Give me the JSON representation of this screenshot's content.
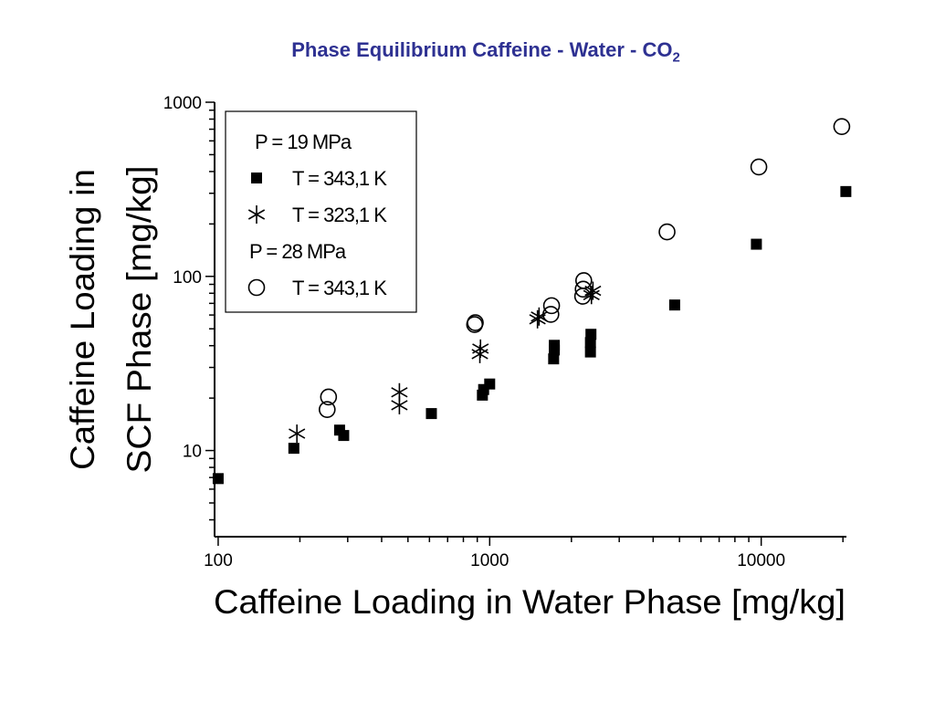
{
  "slide": {
    "title_main": "Phase Equilibrium Caffeine - Water - CO",
    "title_sub": "2"
  },
  "chart_data": {
    "type": "scatter",
    "xscale": "log",
    "yscale": "log",
    "xlim": [
      97,
      20600
    ],
    "ylim": [
      3.2,
      1000
    ],
    "xlabel": "Caffeine Loading in Water Phase [mg/kg]",
    "ylabel_lines": [
      "Caffeine Loading in",
      "SCF Phase [mg/kg]"
    ],
    "x_ticks": [
      {
        "value": 100,
        "label": "100"
      },
      {
        "value": 1000,
        "label": "1000"
      },
      {
        "value": 10000,
        "label": "10000"
      }
    ],
    "y_ticks": [
      {
        "value": 10,
        "label": "10"
      },
      {
        "value": 100,
        "label": "100"
      },
      {
        "value": 1000,
        "label": "1000"
      }
    ],
    "legend": {
      "placement": "top-left",
      "groups": [
        {
          "label": "P = 19 MPa",
          "entries": [
            {
              "marker": "filled-square",
              "label": "T = 343,1 K"
            },
            {
              "marker": "asterisk",
              "label": "T = 323,1 K"
            }
          ]
        },
        {
          "label": "P = 28 MPa",
          "entries": [
            {
              "marker": "open-circle",
              "label": "T = 343,1 K"
            }
          ]
        }
      ]
    },
    "series": [
      {
        "marker": "filled-square",
        "color": "#000000",
        "points": [
          [
            100,
            6.9
          ],
          [
            190,
            10.3
          ],
          [
            280,
            13.1
          ],
          [
            290,
            12.2
          ],
          [
            610,
            16.3
          ],
          [
            940,
            20.8
          ],
          [
            950,
            22.4
          ],
          [
            1000,
            24.1
          ],
          [
            1720,
            33.6
          ],
          [
            1730,
            37.8
          ],
          [
            1730,
            40.2
          ],
          [
            2350,
            36.8
          ],
          [
            2350,
            41.7
          ],
          [
            2360,
            46.5
          ],
          [
            4800,
            68.5
          ],
          [
            9600,
            153
          ],
          [
            20500,
            307
          ]
        ]
      },
      {
        "marker": "asterisk",
        "color": "#000000",
        "points": [
          [
            195,
            12.5
          ],
          [
            465,
            18.2
          ],
          [
            465,
            21.6
          ],
          [
            920,
            35.8
          ],
          [
            925,
            38.5
          ],
          [
            1500,
            56.7
          ],
          [
            1520,
            58.8
          ],
          [
            2370,
            78.1
          ],
          [
            2400,
            82.7
          ]
        ]
      },
      {
        "marker": "open-circle",
        "color": "#000000",
        "points": [
          [
            252,
            17.2
          ],
          [
            255,
            20.3
          ],
          [
            880,
            52.9
          ],
          [
            885,
            54.2
          ],
          [
            1680,
            60.5
          ],
          [
            1690,
            67.9
          ],
          [
            2200,
            76.9
          ],
          [
            2210,
            84.4
          ],
          [
            2220,
            94.6
          ],
          [
            4500,
            180
          ],
          [
            9800,
            425
          ],
          [
            19800,
            725
          ]
        ]
      }
    ]
  }
}
